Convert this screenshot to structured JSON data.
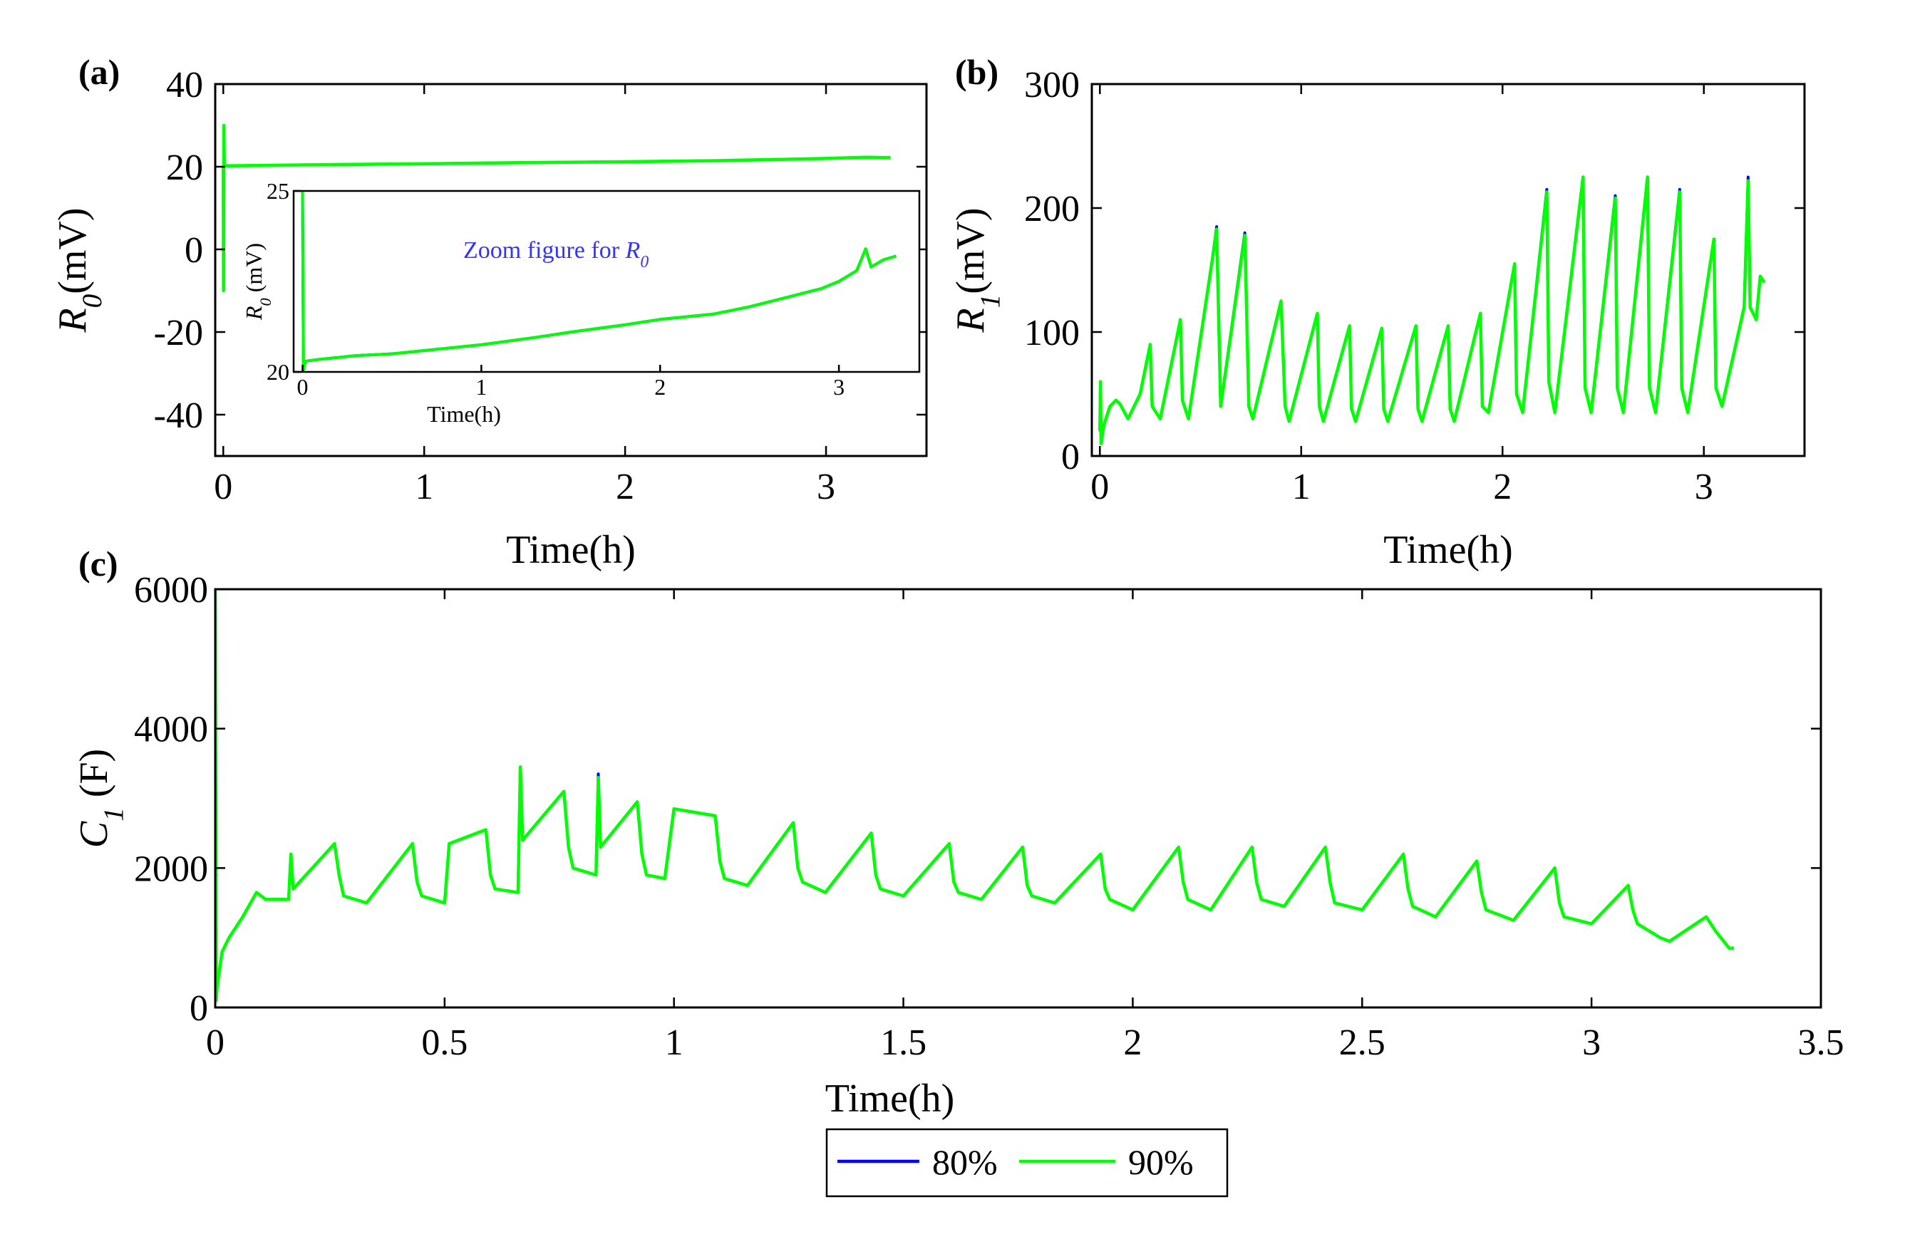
{
  "colors": {
    "s80": "#0000ff",
    "s90": "#00ff00",
    "annotation": "#3333ff"
  },
  "legend": [
    {
      "key": "s80",
      "label": "80%"
    },
    {
      "key": "s90",
      "label": "90%"
    }
  ],
  "chart_data": [
    {
      "id": "a",
      "type": "line",
      "panel_label": "(a)",
      "title": "",
      "xlabel": "Time(h)",
      "ylabel_sym": "R",
      "ylabel_sub": "0",
      "ylabel_unit": "(mV)",
      "xlim": [
        -0.04,
        3.5
      ],
      "ylim": [
        -50,
        40
      ],
      "xticks": [
        0,
        1,
        2,
        3
      ],
      "yticks": [
        -40,
        -20,
        0,
        20,
        40
      ],
      "xtick_labels": [
        "0",
        "1",
        "2",
        "3"
      ],
      "ytick_labels": [
        "-40",
        "-20",
        "0",
        "20",
        "40"
      ],
      "series": [
        {
          "name": "80%",
          "x": [
            0,
            0.001,
            0.003,
            0.005,
            0.02,
            0.5,
            1.0,
            1.5,
            2.0,
            2.5,
            3.0,
            3.2,
            3.32
          ],
          "y": [
            20,
            -10,
            30,
            20.3,
            20.2,
            20.5,
            20.7,
            21.0,
            21.2,
            21.5,
            22.0,
            22.3,
            22.2
          ]
        },
        {
          "name": "90%",
          "x": [
            0,
            0.001,
            0.003,
            0.005,
            0.02,
            0.5,
            1.0,
            1.5,
            2.0,
            2.5,
            3.0,
            3.2,
            3.32
          ],
          "y": [
            20,
            -10,
            30,
            20.3,
            20.2,
            20.5,
            20.7,
            21.0,
            21.2,
            21.5,
            22.0,
            22.3,
            22.2
          ]
        }
      ],
      "inset": {
        "annotation_prefix": "Zoom figure for ",
        "annotation_sym": "R",
        "annotation_sub": "0",
        "xlabel": "Time(h)",
        "ylabel_sym": "R",
        "ylabel_sub": "0",
        "ylabel_unit": " (mV)",
        "xlim": [
          -0.05,
          3.45
        ],
        "ylim": [
          20,
          25
        ],
        "xticks": [
          0,
          1,
          2,
          3
        ],
        "yticks": [
          20,
          25
        ],
        "xtick_labels": [
          "0",
          "1",
          "2",
          "3"
        ],
        "ytick_labels": [
          "20",
          "25"
        ],
        "series": [
          {
            "name": "80%",
            "x": [
              0,
              0.005,
              0.01,
              0.02,
              0.1,
              0.3,
              0.5,
              0.8,
              1.0,
              1.3,
              1.5,
              1.8,
              2.0,
              2.3,
              2.5,
              2.7,
              2.9,
              3.0,
              3.1,
              3.15,
              3.18,
              3.25,
              3.32
            ],
            "y": [
              25,
              20.0,
              20.2,
              20.3,
              20.35,
              20.45,
              20.5,
              20.65,
              20.75,
              20.95,
              21.1,
              21.3,
              21.45,
              21.6,
              21.8,
              22.05,
              22.3,
              22.5,
              22.8,
              23.4,
              22.9,
              23.1,
              23.2
            ]
          },
          {
            "name": "90%",
            "x": [
              0,
              0.005,
              0.01,
              0.02,
              0.1,
              0.3,
              0.5,
              0.8,
              1.0,
              1.3,
              1.5,
              1.8,
              2.0,
              2.3,
              2.5,
              2.7,
              2.9,
              3.0,
              3.1,
              3.15,
              3.18,
              3.25,
              3.32
            ],
            "y": [
              25,
              20.0,
              20.2,
              20.3,
              20.35,
              20.45,
              20.5,
              20.65,
              20.75,
              20.95,
              21.1,
              21.3,
              21.45,
              21.6,
              21.8,
              22.05,
              22.3,
              22.5,
              22.8,
              23.4,
              22.9,
              23.1,
              23.2
            ]
          }
        ]
      }
    },
    {
      "id": "b",
      "type": "line",
      "panel_label": "(b)",
      "title": "",
      "xlabel": "Time(h)",
      "ylabel_sym": "R",
      "ylabel_sub": "1",
      "ylabel_unit": "(mV)",
      "xlim": [
        -0.04,
        3.5
      ],
      "ylim": [
        0,
        300
      ],
      "xticks": [
        0,
        1,
        2,
        3
      ],
      "yticks": [
        0,
        100,
        200,
        300
      ],
      "xtick_labels": [
        "0",
        "1",
        "2",
        "3"
      ],
      "ytick_labels": [
        "0",
        "100",
        "200",
        "300"
      ],
      "series": [
        {
          "name": "80%",
          "x": [
            0,
            0.003,
            0.006,
            0.02,
            0.05,
            0.08,
            0.1,
            0.14,
            0.2,
            0.25,
            0.26,
            0.3,
            0.4,
            0.41,
            0.44,
            0.56,
            0.58,
            0.6,
            0.72,
            0.74,
            0.76,
            0.9,
            0.92,
            0.94,
            1.08,
            1.09,
            1.11,
            1.24,
            1.25,
            1.27,
            1.4,
            1.41,
            1.43,
            1.57,
            1.58,
            1.6,
            1.73,
            1.74,
            1.76,
            1.89,
            1.9,
            1.93,
            2.06,
            2.07,
            2.1,
            2.22,
            2.23,
            2.26,
            2.4,
            2.41,
            2.44,
            2.56,
            2.57,
            2.6,
            2.72,
            2.73,
            2.76,
            2.88,
            2.89,
            2.92,
            3.05,
            3.06,
            3.09,
            3.2,
            3.22,
            3.23,
            3.26,
            3.28,
            3.3
          ],
          "y": [
            20,
            60,
            10,
            25,
            40,
            45,
            42,
            30,
            50,
            90,
            40,
            30,
            110,
            45,
            30,
            160,
            185,
            40,
            180,
            40,
            30,
            125,
            40,
            28,
            115,
            40,
            28,
            105,
            38,
            28,
            103,
            38,
            28,
            105,
            38,
            28,
            105,
            38,
            28,
            115,
            40,
            35,
            155,
            50,
            35,
            215,
            60,
            35,
            225,
            55,
            35,
            210,
            55,
            35,
            225,
            55,
            35,
            215,
            55,
            35,
            175,
            55,
            40,
            120,
            225,
            120,
            110,
            145,
            140
          ]
        },
        {
          "name": "90%",
          "x": [
            0,
            0.003,
            0.006,
            0.02,
            0.05,
            0.08,
            0.1,
            0.14,
            0.2,
            0.25,
            0.26,
            0.3,
            0.4,
            0.41,
            0.44,
            0.56,
            0.58,
            0.6,
            0.72,
            0.74,
            0.76,
            0.9,
            0.92,
            0.94,
            1.08,
            1.09,
            1.11,
            1.24,
            1.25,
            1.27,
            1.4,
            1.41,
            1.43,
            1.57,
            1.58,
            1.6,
            1.73,
            1.74,
            1.76,
            1.89,
            1.9,
            1.93,
            2.06,
            2.07,
            2.1,
            2.22,
            2.23,
            2.26,
            2.4,
            2.41,
            2.44,
            2.56,
            2.57,
            2.6,
            2.72,
            2.73,
            2.76,
            2.88,
            2.89,
            2.92,
            3.05,
            3.06,
            3.09,
            3.2,
            3.22,
            3.23,
            3.26,
            3.28,
            3.3
          ],
          "y": [
            20,
            60,
            10,
            25,
            40,
            45,
            42,
            30,
            50,
            90,
            40,
            30,
            110,
            45,
            30,
            160,
            183,
            40,
            178,
            40,
            30,
            125,
            40,
            28,
            115,
            40,
            28,
            105,
            38,
            28,
            103,
            38,
            28,
            105,
            38,
            28,
            105,
            38,
            28,
            115,
            40,
            35,
            155,
            50,
            35,
            213,
            60,
            35,
            225,
            55,
            35,
            208,
            55,
            35,
            225,
            55,
            35,
            213,
            55,
            35,
            175,
            55,
            40,
            120,
            222,
            120,
            110,
            145,
            140
          ]
        }
      ]
    },
    {
      "id": "c",
      "type": "line",
      "panel_label": "(c)",
      "title": "",
      "xlabel": "Time(h)",
      "ylabel_sym": "C",
      "ylabel_sub": "1",
      "ylabel_unit": " (F)",
      "xlim": [
        0,
        3.5
      ],
      "ylim": [
        0,
        6000
      ],
      "xticks": [
        0,
        0.5,
        1,
        1.5,
        2,
        2.5,
        3,
        3.5
      ],
      "yticks": [
        0,
        2000,
        4000,
        6000
      ],
      "xtick_labels": [
        "0",
        "0.5",
        "1",
        "1.5",
        "2",
        "2.5",
        "3",
        "3.5"
      ],
      "ytick_labels": [
        "0",
        "2000",
        "4000",
        "6000"
      ],
      "series": [
        {
          "name": "80%",
          "x": [
            0,
            0.002,
            0.004,
            0.015,
            0.03,
            0.06,
            0.09,
            0.11,
            0.16,
            0.165,
            0.17,
            0.26,
            0.27,
            0.28,
            0.33,
            0.43,
            0.44,
            0.45,
            0.5,
            0.51,
            0.59,
            0.6,
            0.61,
            0.66,
            0.665,
            0.67,
            0.76,
            0.77,
            0.78,
            0.83,
            0.835,
            0.84,
            0.92,
            0.93,
            0.94,
            0.98,
            1.0,
            1.09,
            1.1,
            1.11,
            1.16,
            1.26,
            1.27,
            1.28,
            1.33,
            1.43,
            1.44,
            1.45,
            1.5,
            1.6,
            1.61,
            1.62,
            1.67,
            1.76,
            1.77,
            1.78,
            1.83,
            1.93,
            1.94,
            1.95,
            2.0,
            2.1,
            2.11,
            2.12,
            2.17,
            2.26,
            2.27,
            2.28,
            2.33,
            2.42,
            2.43,
            2.44,
            2.5,
            2.59,
            2.6,
            2.61,
            2.66,
            2.75,
            2.76,
            2.77,
            2.83,
            2.92,
            2.93,
            2.94,
            3.0,
            3.08,
            3.09,
            3.1,
            3.15,
            3.17,
            3.25,
            3.27,
            3.3,
            3.31
          ],
          "y": [
            6000,
            100,
            300,
            800,
            1000,
            1300,
            1650,
            1550,
            1550,
            2200,
            1700,
            2350,
            1900,
            1600,
            1500,
            2350,
            1800,
            1600,
            1500,
            2350,
            2550,
            1900,
            1700,
            1650,
            3450,
            2400,
            3100,
            2300,
            2000,
            1900,
            3350,
            2300,
            2950,
            2200,
            1900,
            1850,
            2850,
            2750,
            2100,
            1850,
            1750,
            2650,
            2000,
            1800,
            1650,
            2500,
            1900,
            1700,
            1600,
            2350,
            1800,
            1650,
            1550,
            2300,
            1750,
            1600,
            1500,
            2200,
            1700,
            1550,
            1400,
            2300,
            1800,
            1550,
            1400,
            2300,
            1800,
            1550,
            1450,
            2300,
            1800,
            1500,
            1400,
            2200,
            1700,
            1450,
            1300,
            2100,
            1650,
            1400,
            1250,
            2000,
            1500,
            1300,
            1200,
            1750,
            1400,
            1200,
            1000,
            950,
            1300,
            1100,
            850,
            850
          ]
        },
        {
          "name": "90%",
          "x": [
            0,
            0.002,
            0.004,
            0.015,
            0.03,
            0.06,
            0.09,
            0.11,
            0.16,
            0.165,
            0.17,
            0.26,
            0.27,
            0.28,
            0.33,
            0.43,
            0.44,
            0.45,
            0.5,
            0.51,
            0.59,
            0.6,
            0.61,
            0.66,
            0.665,
            0.67,
            0.76,
            0.77,
            0.78,
            0.83,
            0.835,
            0.84,
            0.92,
            0.93,
            0.94,
            0.98,
            1.0,
            1.09,
            1.1,
            1.11,
            1.16,
            1.26,
            1.27,
            1.28,
            1.33,
            1.43,
            1.44,
            1.45,
            1.5,
            1.6,
            1.61,
            1.62,
            1.67,
            1.76,
            1.77,
            1.78,
            1.83,
            1.93,
            1.94,
            1.95,
            2.0,
            2.1,
            2.11,
            2.12,
            2.17,
            2.26,
            2.27,
            2.28,
            2.33,
            2.42,
            2.43,
            2.44,
            2.5,
            2.59,
            2.6,
            2.61,
            2.66,
            2.75,
            2.76,
            2.77,
            2.83,
            2.92,
            2.93,
            2.94,
            3.0,
            3.08,
            3.09,
            3.1,
            3.15,
            3.17,
            3.25,
            3.27,
            3.3,
            3.31
          ],
          "y": [
            6000,
            100,
            300,
            800,
            1000,
            1300,
            1650,
            1550,
            1550,
            2200,
            1700,
            2350,
            1900,
            1600,
            1500,
            2350,
            1800,
            1600,
            1500,
            2350,
            2550,
            1900,
            1700,
            1650,
            3450,
            2400,
            3100,
            2300,
            2000,
            1900,
            3300,
            2300,
            2950,
            2200,
            1900,
            1850,
            2850,
            2750,
            2100,
            1850,
            1750,
            2650,
            2000,
            1800,
            1650,
            2500,
            1900,
            1700,
            1600,
            2350,
            1800,
            1650,
            1550,
            2300,
            1750,
            1600,
            1500,
            2200,
            1700,
            1550,
            1400,
            2300,
            1800,
            1550,
            1400,
            2300,
            1800,
            1550,
            1450,
            2300,
            1800,
            1500,
            1400,
            2200,
            1700,
            1450,
            1300,
            2100,
            1650,
            1400,
            1250,
            2000,
            1500,
            1300,
            1200,
            1750,
            1400,
            1200,
            1000,
            950,
            1300,
            1100,
            850,
            850
          ]
        }
      ]
    }
  ]
}
